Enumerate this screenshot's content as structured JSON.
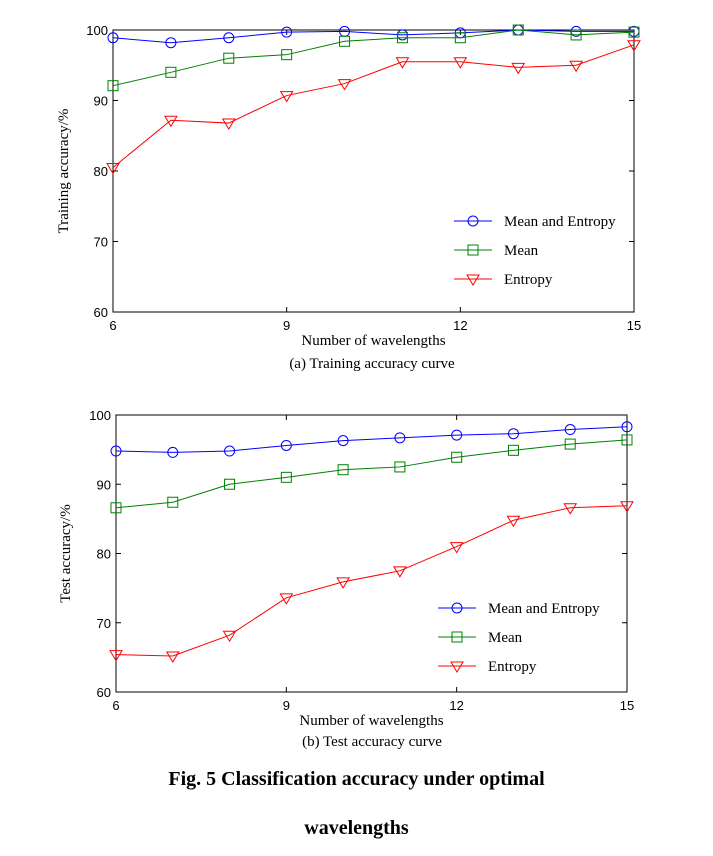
{
  "figure": {
    "caption_line1": "Fig. 5 Classification accuracy under optimal",
    "caption_line2": "wavelengths"
  },
  "chart_data": [
    {
      "type": "line",
      "subtitle": "(a) Training accuracy curve",
      "xlabel": "Number of wavelengths",
      "ylabel": "Training accuracy/%",
      "xlim": [
        6,
        15
      ],
      "ylim": [
        60,
        100
      ],
      "xticks": [
        6,
        9,
        12,
        15
      ],
      "yticks": [
        60,
        70,
        80,
        90,
        100
      ],
      "grid": false,
      "legend_position": "center-right",
      "x": [
        6,
        7,
        8,
        9,
        10,
        11,
        12,
        13,
        14,
        15
      ],
      "series": [
        {
          "name": "Mean and Entropy",
          "color": "#0000ff",
          "marker": "circle",
          "values": [
            98.9,
            98.2,
            98.9,
            99.7,
            99.8,
            99.3,
            99.6,
            100.0,
            99.8,
            99.8
          ]
        },
        {
          "name": "Mean",
          "color": "#008000",
          "marker": "square",
          "values": [
            92.1,
            94.0,
            96.0,
            96.5,
            98.4,
            98.9,
            98.9,
            100.0,
            99.3,
            99.7
          ]
        },
        {
          "name": "Entropy",
          "color": "#ff0000",
          "marker": "triangle-down",
          "values": [
            80.5,
            87.2,
            86.8,
            90.7,
            92.4,
            95.5,
            95.5,
            94.7,
            95.0,
            97.9
          ]
        }
      ]
    },
    {
      "type": "line",
      "subtitle": "(b) Test accuracy curve",
      "xlabel": "Number of wavelengths",
      "ylabel": "Test accuracy/%",
      "xlim": [
        6,
        15
      ],
      "ylim": [
        60,
        100
      ],
      "xticks": [
        6,
        9,
        12,
        15
      ],
      "yticks": [
        60,
        70,
        80,
        90,
        100
      ],
      "grid": false,
      "legend_position": "center-right",
      "x": [
        6,
        7,
        8,
        9,
        10,
        11,
        12,
        13,
        14,
        15
      ],
      "series": [
        {
          "name": "Mean and Entropy",
          "color": "#0000ff",
          "marker": "circle",
          "values": [
            94.8,
            94.6,
            94.8,
            95.6,
            96.3,
            96.7,
            97.1,
            97.3,
            97.9,
            98.3
          ]
        },
        {
          "name": "Mean",
          "color": "#008000",
          "marker": "square",
          "values": [
            86.6,
            87.4,
            90.0,
            91.0,
            92.1,
            92.5,
            93.9,
            94.9,
            95.8,
            96.4
          ]
        },
        {
          "name": "Entropy",
          "color": "#ff0000",
          "marker": "triangle-down",
          "values": [
            65.4,
            65.2,
            68.2,
            73.6,
            75.9,
            77.5,
            81.0,
            84.8,
            86.6,
            86.9
          ]
        }
      ]
    }
  ]
}
